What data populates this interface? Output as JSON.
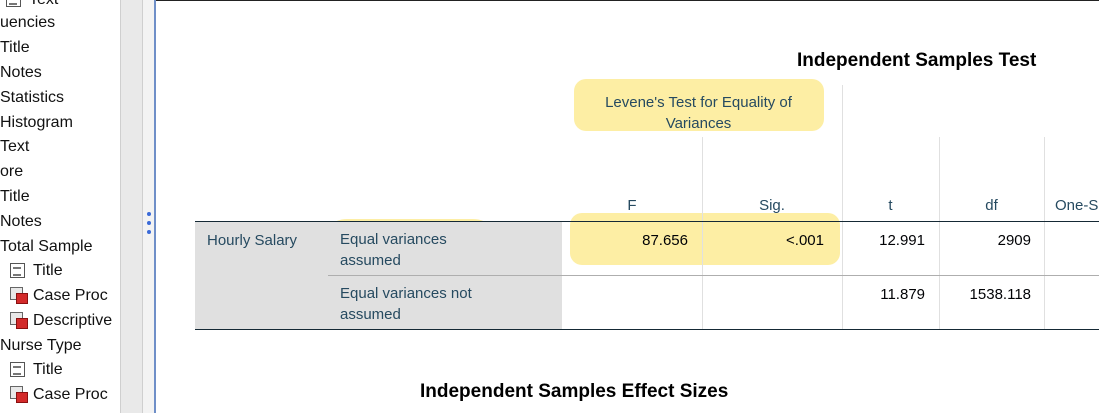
{
  "outline": {
    "items": [
      {
        "label": "Text",
        "icon": "title-icon"
      },
      {
        "label": "uencies",
        "icon": ""
      },
      {
        "label": "Title",
        "icon": ""
      },
      {
        "label": "Notes",
        "icon": ""
      },
      {
        "label": "Statistics",
        "icon": ""
      },
      {
        "label": "Histogram",
        "icon": ""
      },
      {
        "label": "Text",
        "icon": ""
      },
      {
        "label": "ore",
        "icon": ""
      },
      {
        "label": "Title",
        "icon": ""
      },
      {
        "label": "Notes",
        "icon": ""
      },
      {
        "label": "Total Sample",
        "icon": ""
      },
      {
        "label": "Title",
        "icon": "title-icon"
      },
      {
        "label": "Case Proc",
        "icon": "table-icon"
      },
      {
        "label": "Descriptive",
        "icon": "table-icon"
      },
      {
        "label": "Nurse Type",
        "icon": ""
      },
      {
        "label": "Title",
        "icon": "title-icon"
      },
      {
        "label": "Case Proc",
        "icon": "table-icon"
      }
    ]
  },
  "table": {
    "title": "Independent Samples Test",
    "group_header": "Levene's Test for Equality of Variances",
    "group_header_line1": "Levene's Test for Equality of",
    "group_header_line2": "Variances",
    "columns": [
      "F",
      "Sig.",
      "t",
      "df",
      "One-S"
    ],
    "variable": "Hourly Salary",
    "rows": [
      {
        "label_line1": "Equal variances",
        "label_line2": "assumed",
        "F": "87.656",
        "Sig": "<.001",
        "t": "12.991",
        "df": "2909"
      },
      {
        "label_line1": "Equal variances not",
        "label_line2": "assumed",
        "F": "",
        "Sig": "",
        "t": "11.879",
        "df": "1538.118"
      }
    ]
  },
  "next_title": "Independent Samples Effect Sizes",
  "colors": {
    "highlight": "#fde98a",
    "header_text": "#264a60",
    "label_bg": "#e0e0e0",
    "splitter": "#6f8fc8"
  }
}
